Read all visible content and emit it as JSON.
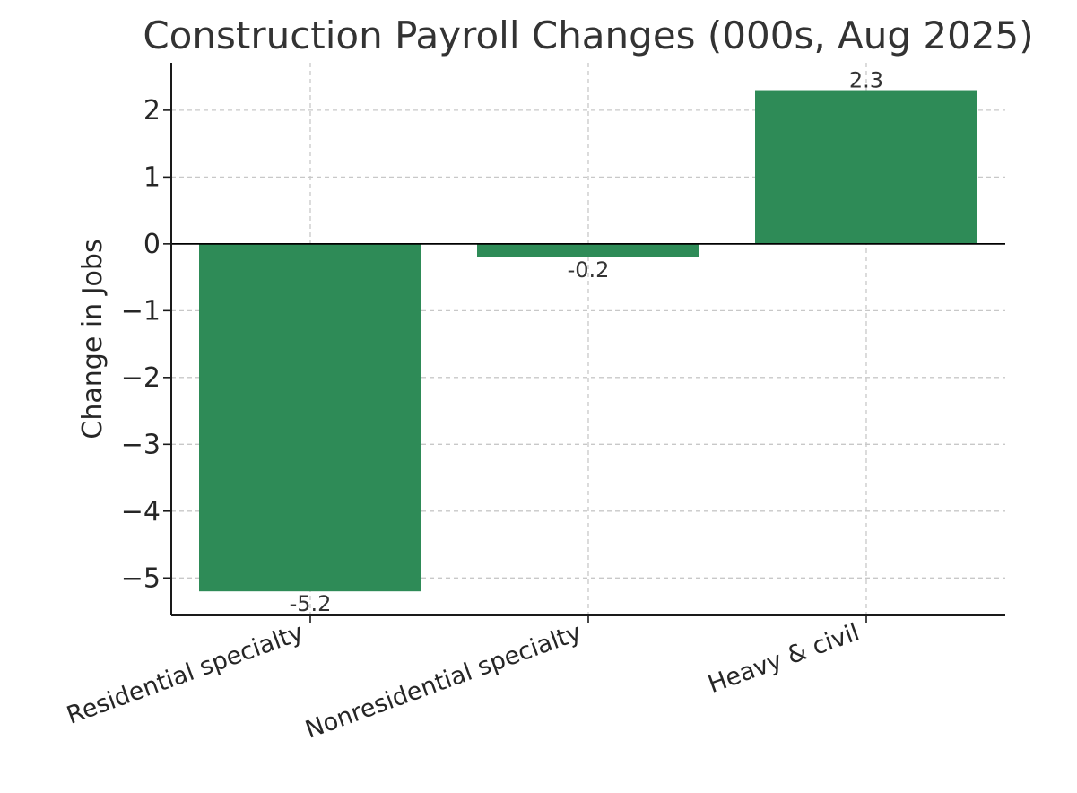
{
  "chart_data": {
    "type": "bar",
    "title": "Construction Payroll Changes (000s, Aug 2025)",
    "xlabel": "",
    "ylabel": "Change in Jobs",
    "categories": [
      "Residential specialty",
      "Nonresidential specialty",
      "Heavy & civil"
    ],
    "values": [
      -5.2,
      -0.2,
      2.3
    ],
    "data_labels": [
      "-5.2",
      "-0.2",
      "2.3"
    ],
    "ylim": [
      -5.56,
      2.71
    ],
    "yticks": [
      2,
      1,
      0,
      -1,
      -2,
      -3,
      -4,
      -5
    ],
    "ytick_labels": [
      "2",
      "1",
      "0",
      "−1",
      "−2",
      "−3",
      "−4",
      "−5"
    ],
    "grid": true,
    "zero_line": true,
    "colors": {
      "bar": "#2e8b57",
      "grid": "#c8c8c8",
      "axis": "#1a1a1a"
    }
  }
}
